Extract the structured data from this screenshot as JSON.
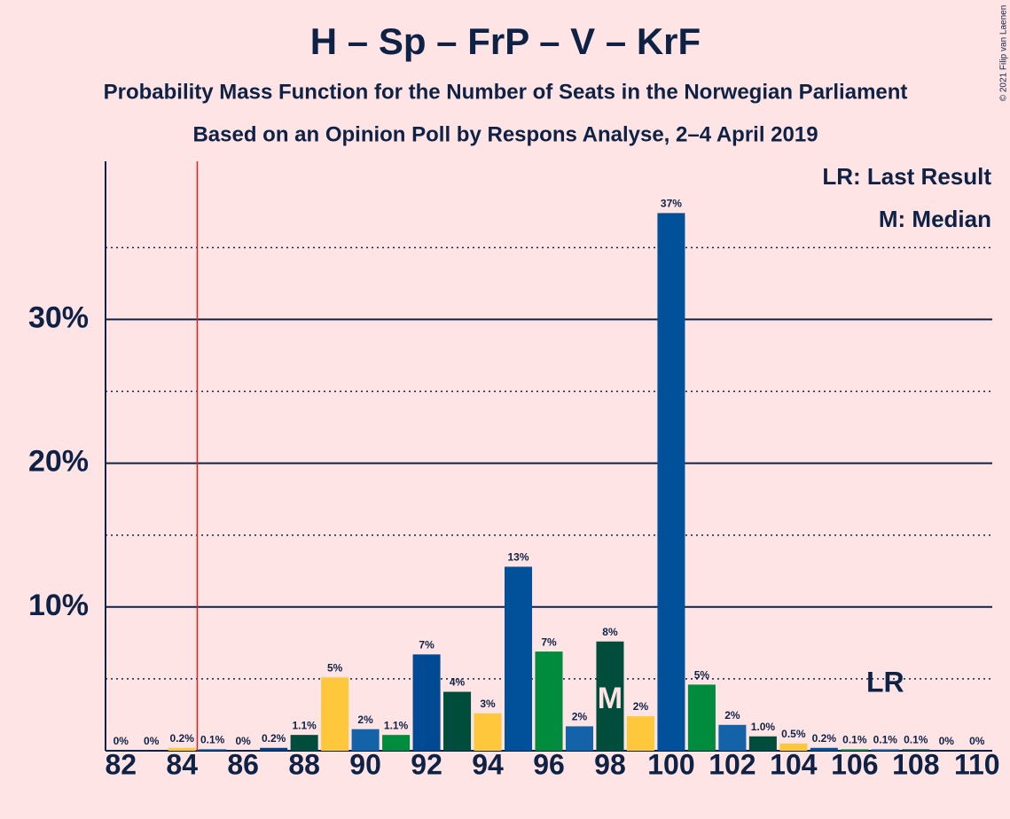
{
  "chart_data": {
    "type": "bar",
    "title": "H – Sp – FrP – V – KrF",
    "subtitle": "Probability Mass Function for the Number of Seats in the Norwegian Parliament",
    "subtitle2": "Based on an Opinion Poll by Respons Analyse, 2–4 April 2019",
    "copyright": "© 2021 Filip van Laenen",
    "x": [
      82,
      83,
      84,
      85,
      86,
      87,
      88,
      89,
      90,
      91,
      92,
      93,
      94,
      95,
      96,
      97,
      98,
      99,
      100,
      101,
      102,
      103,
      104,
      105,
      106,
      107,
      108,
      109,
      110
    ],
    "values": [
      0,
      0,
      0.2,
      0.1,
      0,
      0.2,
      1.1,
      5.1,
      1.5,
      1.1,
      6.7,
      4.1,
      2.6,
      12.8,
      6.9,
      1.7,
      7.6,
      2.4,
      37.4,
      4.6,
      1.8,
      1.0,
      0.5,
      0.2,
      0.1,
      0.1,
      0.1,
      0,
      0
    ],
    "value_labels": [
      "0%",
      "0%",
      "0.2%",
      "0.1%",
      "0%",
      "0.2%",
      "1.1%",
      "5%",
      "2%",
      "1.1%",
      "7%",
      "4%",
      "3%",
      "13%",
      "7%",
      "2%",
      "8%",
      "2%",
      "37%",
      "5%",
      "2%",
      "1.0%",
      "0.5%",
      "0.2%",
      "0.1%",
      "0.1%",
      "0.1%",
      "0%",
      "0%"
    ],
    "colors": [
      "#00509a",
      "#00509a",
      "#ffc83c",
      "#00509a",
      "#008c3c",
      "#003f87",
      "#004d3c",
      "#ffc83c",
      "#1462a8",
      "#008c3c",
      "#004a94",
      "#004d3c",
      "#ffc83c",
      "#00509a",
      "#008c3c",
      "#1462a8",
      "#004d3c",
      "#ffc83c",
      "#00509a",
      "#008c3c",
      "#1462a8",
      "#004d3c",
      "#ffc83c",
      "#00509a",
      "#008c3c",
      "#1462a8",
      "#004d3c",
      "#ffc83c",
      "#00509a"
    ],
    "xlim": [
      81.5,
      110.5
    ],
    "xticks": [
      82,
      84,
      86,
      88,
      90,
      92,
      94,
      96,
      98,
      100,
      102,
      104,
      106,
      108,
      110
    ],
    "ylim": [
      0,
      41
    ],
    "yticks": [
      {
        "value": 10,
        "label": "10%"
      },
      {
        "value": 20,
        "label": "20%"
      },
      {
        "value": 30,
        "label": "30%"
      }
    ],
    "minor_yticks": [
      5,
      15,
      25,
      35
    ],
    "grid": true,
    "last_result_line": 84.5,
    "lr_label": {
      "text": "LR",
      "x": 107
    },
    "median_label": {
      "text": "M",
      "x": 98
    },
    "legend": [
      "LR: Last Result",
      "M: Median"
    ]
  }
}
